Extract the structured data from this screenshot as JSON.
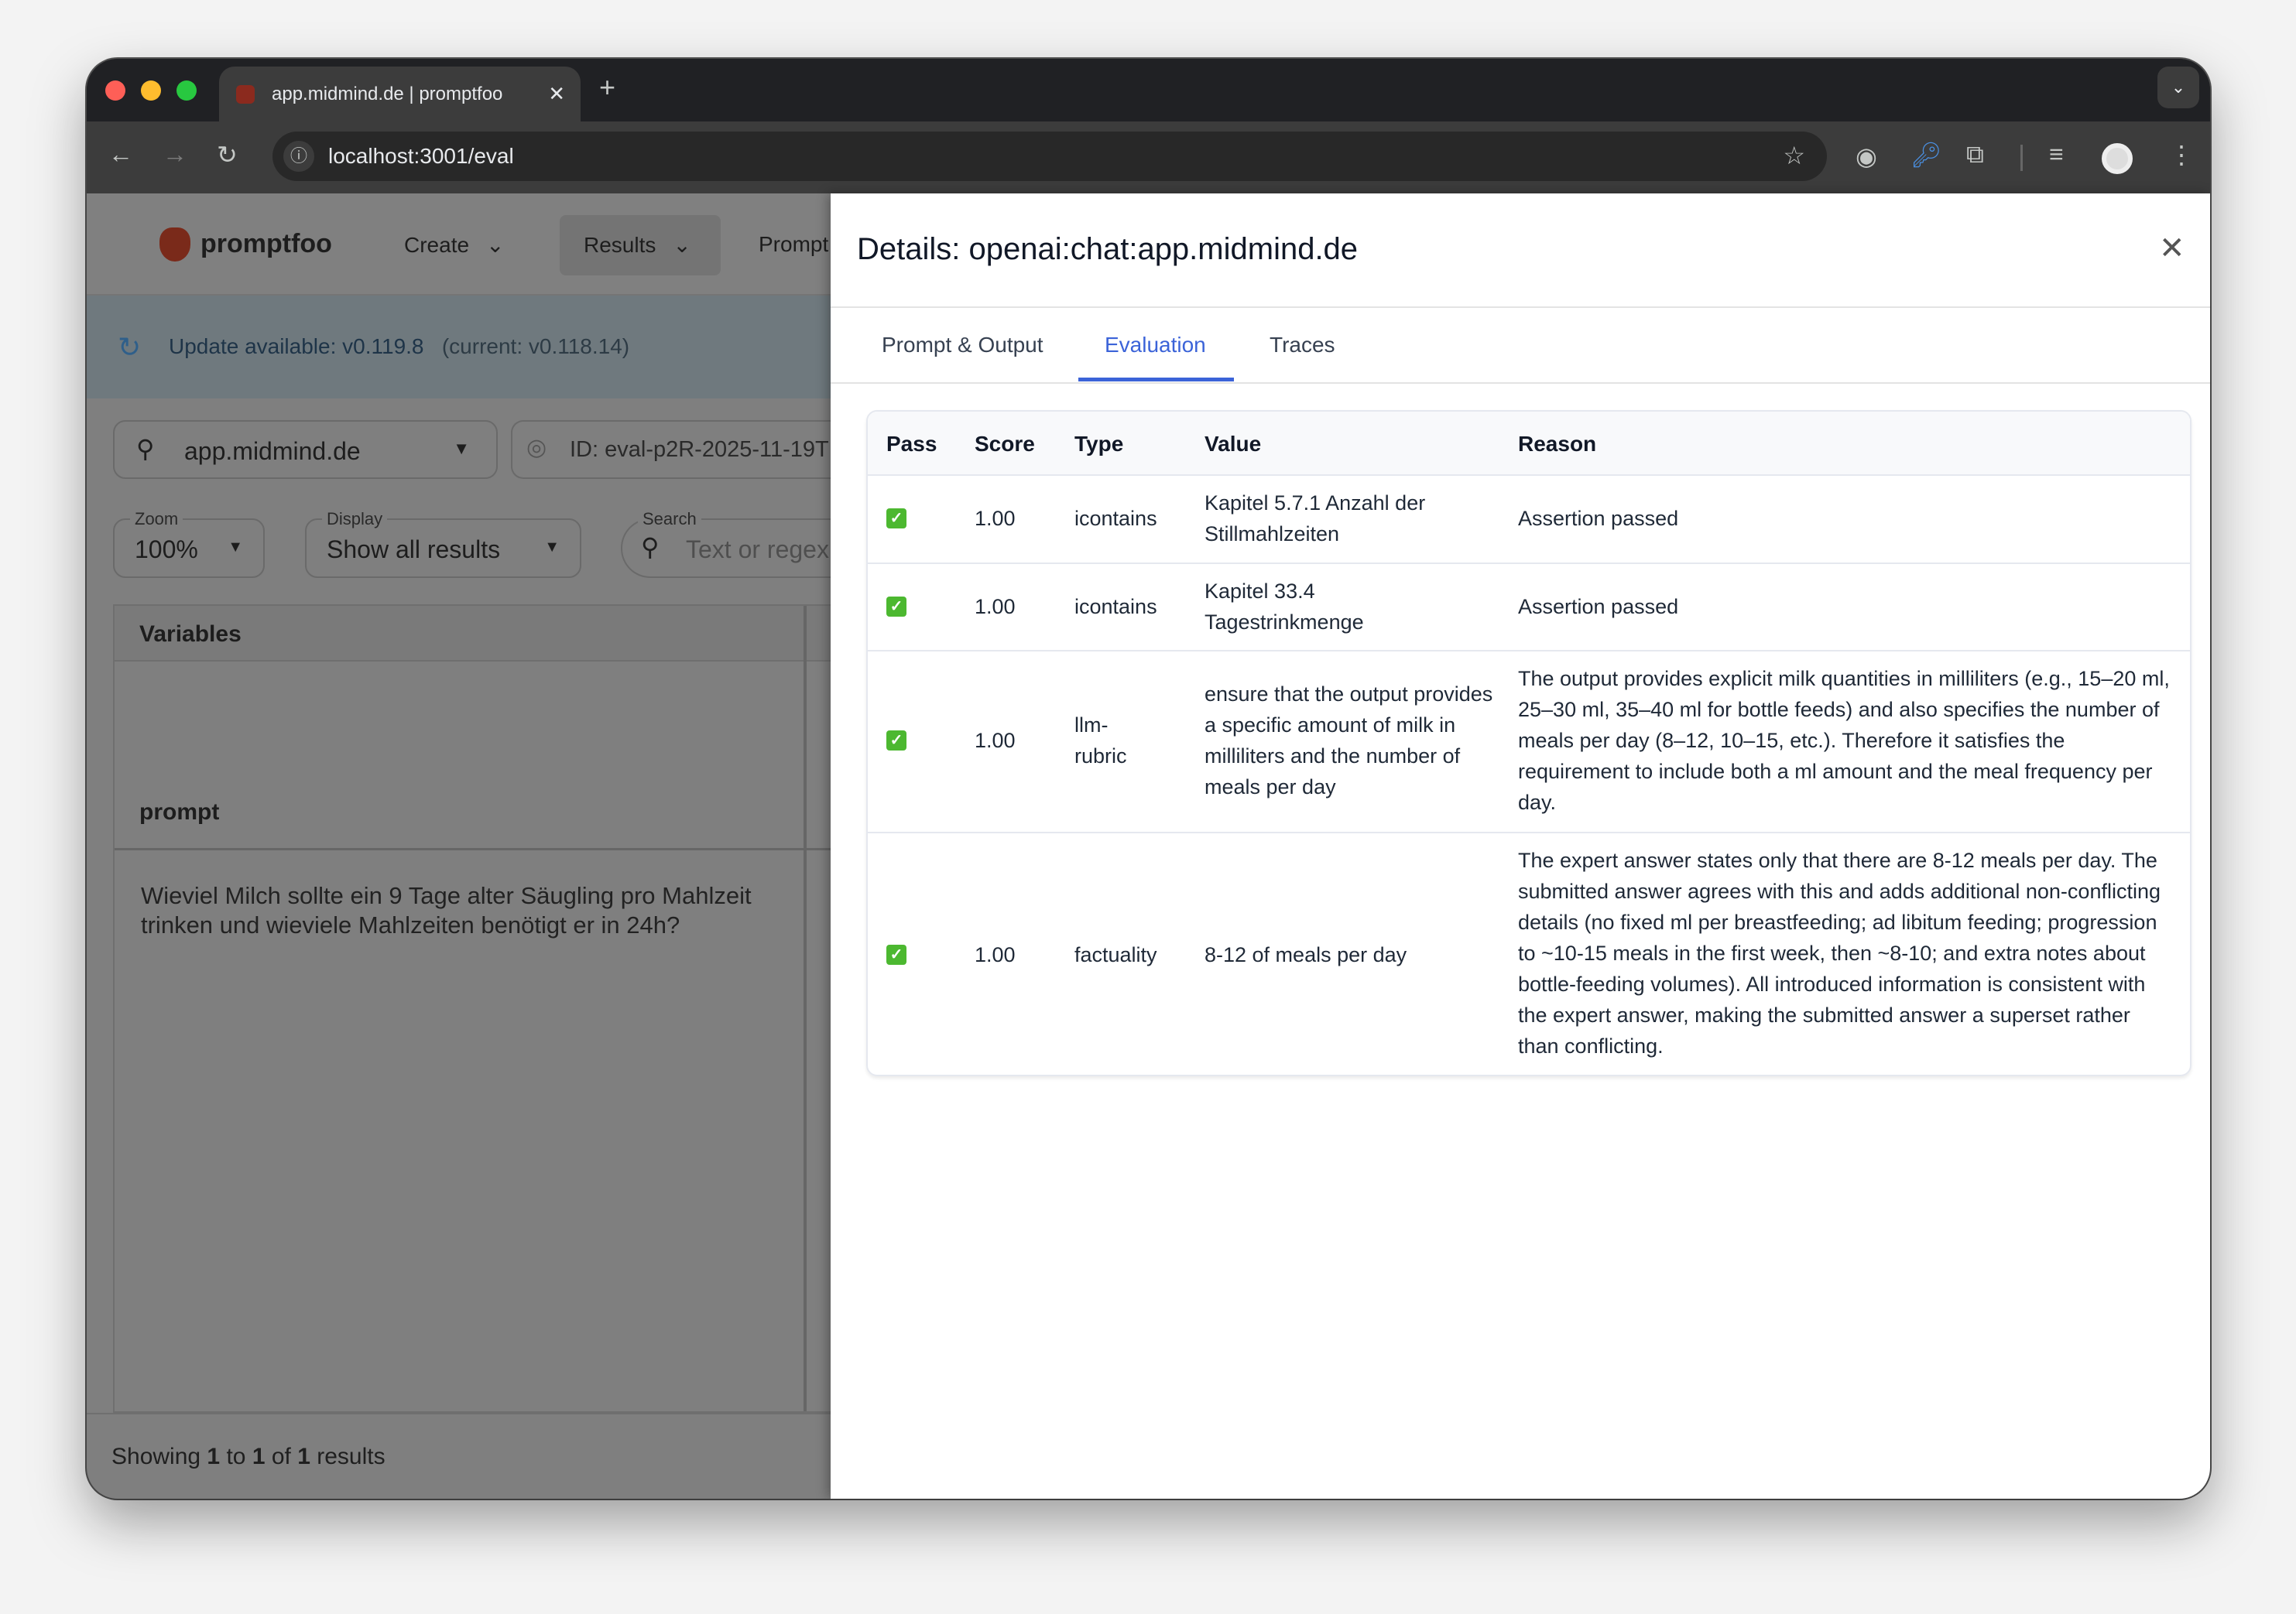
{
  "browser": {
    "tab_title": "app.midmind.de | promptfoo",
    "url": "localhost:3001/eval"
  },
  "app": {
    "brand": "promptfoo",
    "nav": [
      {
        "label": "Create"
      },
      {
        "label": "Results"
      },
      {
        "label": "Prompt"
      }
    ],
    "update_banner": {
      "text": "Update available: v0.119.8",
      "current": "(current: v0.118.14)"
    },
    "eval_select": {
      "value": "app.midmind.de"
    },
    "eval_id": "ID: eval-p2R-2025-11-19T",
    "zoom": {
      "label": "Zoom",
      "value": "100%"
    },
    "display": {
      "label": "Display",
      "value": "Show all results"
    },
    "search": {
      "label": "Search",
      "placeholder": "Text or regex"
    },
    "table": {
      "header": "Variables",
      "var_name": "prompt",
      "var_value": "Wieviel Milch sollte ein 9 Tage alter Säugling pro Mahlzeit trinken und wieviele Mahlzeiten benötigt er in 24h?"
    },
    "footer": {
      "prefix": "Showing ",
      "from": "1",
      "to_word": " to ",
      "to": "1",
      "of_word": " of ",
      "total": "1",
      "suffix": " results"
    }
  },
  "drawer": {
    "title": "Details: openai:chat:app.midmind.de",
    "tabs": [
      {
        "label": "Prompt & Output"
      },
      {
        "label": "Evaluation",
        "active": true
      },
      {
        "label": "Traces"
      }
    ],
    "accent": "#3b63d8",
    "columns": [
      "Pass",
      "Score",
      "Type",
      "Value",
      "Reason"
    ],
    "rows": [
      {
        "pass": true,
        "score": "1.00",
        "type": "icontains",
        "value": "Kapitel 5.7.1 Anzahl der Stillmahlzeiten",
        "reason": "Assertion passed"
      },
      {
        "pass": true,
        "score": "1.00",
        "type": "icontains",
        "value": "Kapitel 33.4 Tagestrinkmenge",
        "reason": "Assertion passed"
      },
      {
        "pass": true,
        "score": "1.00",
        "type": "llm-rubric",
        "value": "ensure that the output provides a specific amount of milk in milliliters and the number of meals per day",
        "reason": "The output provides explicit milk quantities in milliliters (e.g., 15–20 ml, 25–30 ml, 35–40 ml for bottle feeds) and also specifies the number of meals per day (8–12, 10–15, etc.). Therefore it satisfies the requirement to include both a ml amount and the meal frequency per day."
      },
      {
        "pass": true,
        "score": "1.00",
        "type": "factuality",
        "value": "8-12 of meals per day",
        "reason": "The expert answer states only that there are 8-12 meals per day. The submitted answer agrees with this and adds additional non-conflicting details (no fixed ml per breastfeeding; ad libitum feeding; progression to ~10-15 meals in the first week, then ~8-10; and extra notes about bottle-feeding volumes). All introduced information is consistent with the expert answer, making the submitted answer a superset rather than conflicting."
      }
    ]
  }
}
